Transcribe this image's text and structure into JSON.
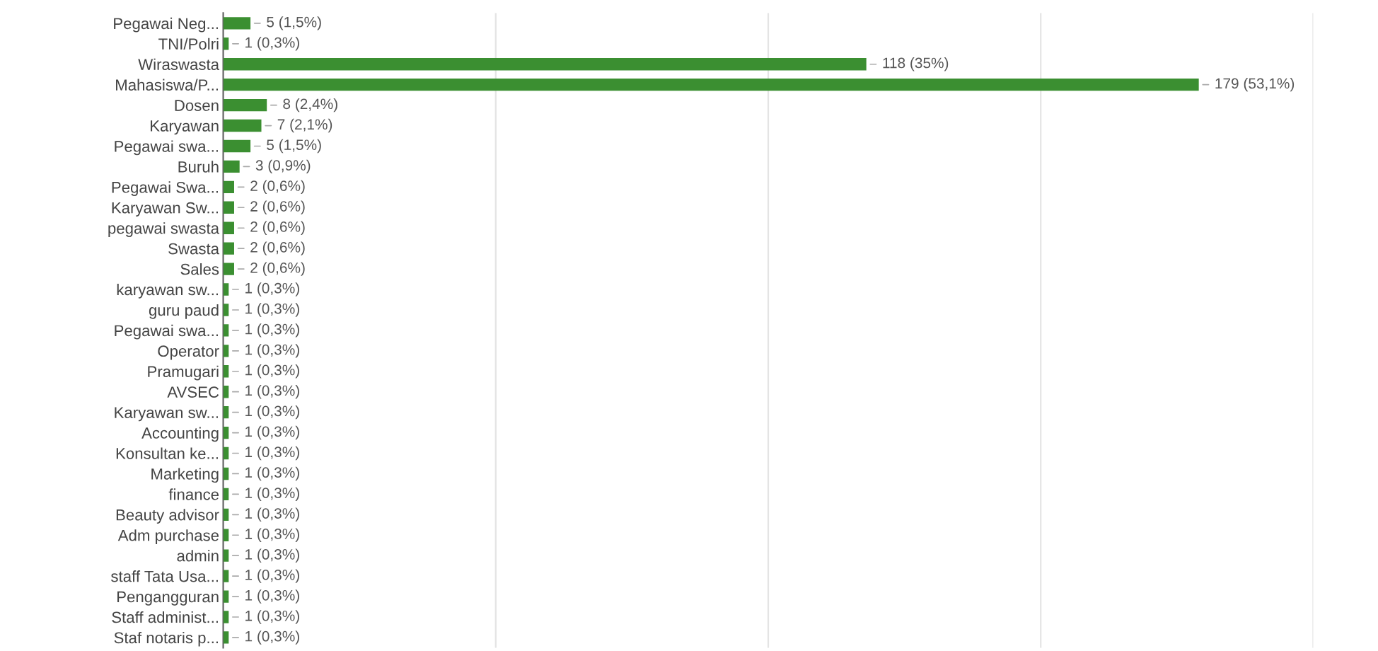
{
  "chart_data": {
    "type": "bar",
    "orientation": "horizontal",
    "categories": [
      "Pegawai Neg...",
      "TNI/Polri",
      "Wiraswasta",
      "Mahasiswa/P...",
      "Dosen",
      "Karyawan",
      "Pegawai swa...",
      "Buruh",
      "Pegawai Swa...",
      "Karyawan Sw...",
      "pegawai swasta",
      "Swasta",
      "Sales",
      "karyawan sw...",
      "guru paud",
      "Pegawai swa...",
      "Operator",
      "Pramugari",
      "AVSEC",
      "Karyawan sw...",
      "Accounting",
      "Konsultan ke...",
      "Marketing",
      "finance",
      "Beauty advisor",
      "Adm purchase",
      "admin",
      "staff Tata Usa...",
      "Pengangguran",
      "Staff administ...",
      "Staf notaris p..."
    ],
    "values": [
      5,
      1,
      118,
      179,
      8,
      7,
      5,
      3,
      2,
      2,
      2,
      2,
      2,
      1,
      1,
      1,
      1,
      1,
      1,
      1,
      1,
      1,
      1,
      1,
      1,
      1,
      1,
      1,
      1,
      1,
      1
    ],
    "value_labels": [
      "5 (1,5%)",
      "1 (0,3%)",
      "118 (35%)",
      "179 (53,1%)",
      "8 (2,4%)",
      "7 (2,1%)",
      "5 (1,5%)",
      "3 (0,9%)",
      "2 (0,6%)",
      "2 (0,6%)",
      "2 (0,6%)",
      "2 (0,6%)",
      "2 (0,6%)",
      "1 (0,3%)",
      "1 (0,3%)",
      "1 (0,3%)",
      "1 (0,3%)",
      "1 (0,3%)",
      "1 (0,3%)",
      "1 (0,3%)",
      "1 (0,3%)",
      "1 (0,3%)",
      "1 (0,3%)",
      "1 (0,3%)",
      "1 (0,3%)",
      "1 (0,3%)",
      "1 (0,3%)",
      "1 (0,3%)",
      "1 (0,3%)",
      "1 (0,3%)",
      "1 (0,3%)"
    ],
    "color": "#3b8f31",
    "xlim": [
      0,
      200
    ],
    "xticks": [
      {
        "value": 50,
        "label": null
      },
      {
        "value": 100,
        "label": null
      },
      {
        "value": 150,
        "label": null
      },
      {
        "value": 200,
        "label": null
      }
    ],
    "grid": "x",
    "tick_labels": "y"
  }
}
